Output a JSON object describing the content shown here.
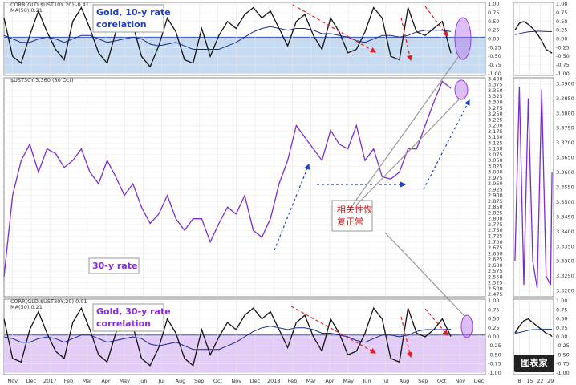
{
  "chart_data": [
    {
      "type": "line",
      "legend": [
        "CORR(GLD,$UST10Y,20) -0.41",
        "MA(50) 0.21"
      ],
      "annotation": [
        "Gold, 10-y rate",
        "corelation"
      ],
      "annotation_color": "#1f3fbf",
      "shade": {
        "from": -1,
        "to": 0.05,
        "color": "#c6dbf1"
      },
      "xlim": [
        0,
        56
      ],
      "ylim": [
        -1.05,
        1.05
      ],
      "yticks": [
        {
          "value": 1,
          "label": "1.00"
        },
        {
          "value": 0.75,
          "label": "0.75"
        },
        {
          "value": 0.5,
          "label": "0.50"
        },
        {
          "value": 0.25,
          "label": "0.25"
        },
        {
          "value": 0,
          "label": "0.00"
        },
        {
          "value": -0.25,
          "label": "-0.25"
        },
        {
          "value": -0.5,
          "label": "-0.50"
        },
        {
          "value": -0.75,
          "label": "-0.75"
        },
        {
          "value": -1,
          "label": "-1.00"
        }
      ],
      "series": [
        {
          "name": "CORR(GLD,$UST10Y,20)",
          "color": "#111111",
          "values": [
            0.6,
            -0.5,
            -0.7,
            0.1,
            0.8,
            0.2,
            -0.3,
            -0.6,
            0.5,
            0.9,
            0.3,
            -0.4,
            -0.7,
            0.2,
            0.7,
            0.4,
            -0.5,
            -0.8,
            -0.2,
            0.6,
            0.2,
            -0.6,
            -0.7,
            0.3,
            -0.5,
            0.1,
            0.5,
            0.3,
            0.7,
            0.9,
            0.6,
            0.8,
            0.3,
            -0.2,
            0.5,
            0.7,
            0.1,
            -0.3,
            0.6,
            0.2,
            -0.4,
            -0.3,
            0.2,
            0.9,
            0.6,
            -0.5,
            -0.6,
            0.9,
            0.2,
            0.1,
            0.3,
            0.5,
            -0.41
          ]
        },
        {
          "name": "MA(50)",
          "color": "#1a2a8a",
          "values": [
            0.1,
            0.0,
            -0.1,
            -0.1,
            0.0,
            0.05,
            0.0,
            -0.1,
            0.0,
            0.1,
            0.1,
            0.0,
            -0.1,
            -0.05,
            0.0,
            0.05,
            0.0,
            -0.15,
            -0.2,
            -0.15,
            -0.1,
            -0.2,
            -0.3,
            -0.3,
            -0.3,
            -0.3,
            -0.2,
            -0.1,
            0.05,
            0.2,
            0.3,
            0.35,
            0.3,
            0.25,
            0.3,
            0.3,
            0.25,
            0.15,
            0.15,
            0.1,
            0.05,
            -0.05,
            -0.1,
            0.0,
            0.1,
            0.1,
            0.05,
            0.1,
            0.2,
            0.25,
            0.25,
            0.25,
            0.21
          ]
        }
      ]
    },
    {
      "type": "line",
      "legend": [
        "$UST30Y 3.360 (30 Oct)"
      ],
      "annotation": [
        "30-y rate"
      ],
      "annotation_color": "#8a2be2",
      "callout": [
        "相关性恢",
        "复正常"
      ],
      "xlim": [
        0,
        56
      ],
      "ylim": [
        2.465,
        3.405
      ],
      "yticks": [
        {
          "value": 3.4,
          "label": "3.400"
        },
        {
          "value": 3.375,
          "label": "3.375"
        },
        {
          "value": 3.35,
          "label": "3.350"
        },
        {
          "value": 3.325,
          "label": "3.325"
        },
        {
          "value": 3.3,
          "label": "3.300"
        },
        {
          "value": 3.275,
          "label": "3.275"
        },
        {
          "value": 3.25,
          "label": "3.250"
        },
        {
          "value": 3.225,
          "label": "3.225"
        },
        {
          "value": 3.2,
          "label": "3.200"
        },
        {
          "value": 3.175,
          "label": "3.175"
        },
        {
          "value": 3.15,
          "label": "3.150"
        },
        {
          "value": 3.125,
          "label": "3.125"
        },
        {
          "value": 3.1,
          "label": "3.100"
        },
        {
          "value": 3.075,
          "label": "3.075"
        },
        {
          "value": 3.05,
          "label": "3.050"
        },
        {
          "value": 3.025,
          "label": "3.025"
        },
        {
          "value": 3,
          "label": "3.000"
        },
        {
          "value": 2.975,
          "label": "2.975"
        },
        {
          "value": 2.95,
          "label": "2.950"
        },
        {
          "value": 2.925,
          "label": "2.925"
        },
        {
          "value": 2.9,
          "label": "2.900"
        },
        {
          "value": 2.875,
          "label": "2.875"
        },
        {
          "value": 2.85,
          "label": "2.850"
        },
        {
          "value": 2.825,
          "label": "2.825"
        },
        {
          "value": 2.8,
          "label": "2.800"
        },
        {
          "value": 2.775,
          "label": "2.775"
        },
        {
          "value": 2.75,
          "label": "2.750"
        },
        {
          "value": 2.725,
          "label": "2.725"
        },
        {
          "value": 2.7,
          "label": "2.700"
        },
        {
          "value": 2.675,
          "label": "2.675"
        },
        {
          "value": 2.65,
          "label": "2.650"
        },
        {
          "value": 2.625,
          "label": "2.625"
        },
        {
          "value": 2.6,
          "label": "2.600"
        },
        {
          "value": 2.575,
          "label": "2.575"
        },
        {
          "value": 2.55,
          "label": "2.550"
        },
        {
          "value": 2.525,
          "label": "2.525"
        },
        {
          "value": 2.5,
          "label": "2.500"
        },
        {
          "value": 2.475,
          "label": "2.475"
        }
      ],
      "series": [
        {
          "name": "$UST30Y",
          "color": "#7b2bd4",
          "values": [
            2.55,
            2.9,
            3.05,
            3.12,
            3.0,
            3.1,
            3.08,
            3.02,
            3.05,
            3.1,
            3.0,
            2.95,
            3.05,
            2.98,
            2.9,
            2.95,
            2.85,
            2.78,
            2.82,
            2.9,
            2.8,
            2.75,
            2.8,
            2.8,
            2.7,
            2.78,
            2.85,
            2.82,
            2.9,
            2.75,
            2.72,
            2.8,
            2.95,
            3.05,
            3.2,
            3.15,
            3.1,
            3.05,
            3.18,
            3.12,
            3.1,
            3.2,
            3.05,
            3.1,
            2.98,
            2.97,
            3.0,
            3.1,
            3.1,
            3.2,
            3.3,
            3.39,
            3.36
          ]
        }
      ]
    },
    {
      "type": "line",
      "legend": [
        "CORR(GLD,$UST30Y,20) 0.01",
        "MA(50) 0.21"
      ],
      "annotation": [
        "Gold, 30-y rate",
        "correlation"
      ],
      "annotation_color": "#8a2be2",
      "shade": {
        "from": -1,
        "to": 0.05,
        "color": "#e3ccf5"
      },
      "xlim": [
        0,
        56
      ],
      "ylim": [
        -1.05,
        1.05
      ],
      "yticks": [
        {
          "value": 1,
          "label": "1.00"
        },
        {
          "value": 0.75,
          "label": "0.75"
        },
        {
          "value": 0.5,
          "label": "0.50"
        },
        {
          "value": 0.25,
          "label": "0.25"
        },
        {
          "value": 0,
          "label": "0.00"
        },
        {
          "value": -0.25,
          "label": "-0.25"
        },
        {
          "value": -0.5,
          "label": "-0.50"
        },
        {
          "value": -0.75,
          "label": "-0.75"
        },
        {
          "value": -1,
          "label": "-1.00"
        }
      ],
      "xticks": [
        {
          "value": 1,
          "label": "Nov"
        },
        {
          "value": 3.17,
          "label": "Dec"
        },
        {
          "value": 5.34,
          "label": "2017"
        },
        {
          "value": 7.51,
          "label": "Feb"
        },
        {
          "value": 9.68,
          "label": "Mar"
        },
        {
          "value": 11.85,
          "label": "Apr"
        },
        {
          "value": 14.02,
          "label": "May"
        },
        {
          "value": 16.19,
          "label": "Jun"
        },
        {
          "value": 18.36,
          "label": "Jul"
        },
        {
          "value": 20.53,
          "label": "Aug"
        },
        {
          "value": 22.7,
          "label": "Sep"
        },
        {
          "value": 24.87,
          "label": "Oct"
        },
        {
          "value": 27.04,
          "label": "Nov"
        },
        {
          "value": 29.21,
          "label": "Dec"
        },
        {
          "value": 31.38,
          "label": "2018"
        },
        {
          "value": 33.55,
          "label": "Feb"
        },
        {
          "value": 35.72,
          "label": "Mar"
        },
        {
          "value": 37.89,
          "label": "Apr"
        },
        {
          "value": 40.06,
          "label": "May"
        },
        {
          "value": 42.23,
          "label": "Jun"
        },
        {
          "value": 44.4,
          "label": "Jul"
        },
        {
          "value": 46.57,
          "label": "Aug"
        },
        {
          "value": 48.74,
          "label": "Sep"
        },
        {
          "value": 50.91,
          "label": "Oct"
        },
        {
          "value": 53.08,
          "label": "Nov"
        },
        {
          "value": 55.25,
          "label": "Dec"
        }
      ],
      "series": [
        {
          "name": "CORR(GLD,$UST30Y,20)",
          "color": "#111111",
          "values": [
            0.5,
            -0.6,
            -0.7,
            0.2,
            0.7,
            0.1,
            -0.4,
            -0.6,
            0.4,
            0.8,
            0.2,
            -0.5,
            -0.7,
            0.1,
            0.6,
            0.3,
            -0.6,
            -0.8,
            -0.3,
            0.5,
            0.1,
            -0.6,
            -0.8,
            0.2,
            -0.5,
            0.0,
            0.4,
            0.2,
            0.6,
            0.8,
            0.5,
            0.7,
            0.2,
            -0.3,
            0.4,
            0.6,
            0.0,
            -0.4,
            0.5,
            0.1,
            -0.5,
            -0.4,
            0.1,
            0.8,
            0.5,
            -0.6,
            -0.7,
            0.8,
            0.1,
            0.0,
            0.2,
            0.5,
            0.01
          ]
        },
        {
          "name": "MA(50)",
          "color": "#1a2a8a",
          "values": [
            0.0,
            -0.05,
            -0.15,
            -0.15,
            -0.05,
            0.0,
            -0.05,
            -0.15,
            -0.05,
            0.05,
            0.05,
            -0.05,
            -0.15,
            -0.1,
            -0.05,
            0.0,
            -0.05,
            -0.2,
            -0.25,
            -0.2,
            -0.15,
            -0.25,
            -0.35,
            -0.35,
            -0.35,
            -0.35,
            -0.25,
            -0.15,
            0.0,
            0.15,
            0.25,
            0.3,
            0.25,
            0.2,
            0.25,
            0.25,
            0.2,
            0.1,
            0.1,
            0.05,
            0.0,
            -0.1,
            -0.15,
            -0.05,
            0.05,
            0.05,
            0.0,
            0.05,
            0.15,
            0.2,
            0.2,
            0.2,
            0.21
          ]
        }
      ]
    },
    {
      "type": "line",
      "xlim": [
        4,
        31
      ],
      "ylim": [
        -1.05,
        1.05
      ],
      "yticks": [
        {
          "value": 1,
          "label": "1.00"
        },
        {
          "value": 0.75,
          "label": "0.75"
        },
        {
          "value": 0.5,
          "label": "0.50"
        },
        {
          "value": 0.25,
          "label": "0.25"
        },
        {
          "value": 0,
          "label": "0.00"
        },
        {
          "value": -0.25,
          "label": "-0.25"
        },
        {
          "value": -0.5,
          "label": "-0.50"
        },
        {
          "value": -0.75,
          "label": "-0.75"
        },
        {
          "value": -1,
          "label": "-1.00"
        }
      ],
      "x": [
        5,
        8,
        11,
        14,
        17,
        20,
        23,
        26,
        29,
        30
      ],
      "series": [
        {
          "color": "#111111",
          "values": [
            0.25,
            0.45,
            0.5,
            0.42,
            0.3,
            0.15,
            -0.05,
            -0.3,
            -0.38,
            -0.41
          ]
        },
        {
          "color": "#1a2a8a",
          "values": [
            0.12,
            0.15,
            0.18,
            0.2,
            0.21,
            0.22,
            0.22,
            0.21,
            0.21,
            0.21
          ]
        }
      ]
    },
    {
      "type": "line",
      "xlim": [
        4,
        31
      ],
      "ylim": [
        3.318,
        3.392
      ],
      "yticks": [
        {
          "value": 3.39,
          "label": "3.3900"
        },
        {
          "value": 3.385,
          "label": "3.3850"
        },
        {
          "value": 3.38,
          "label": "3.3800"
        },
        {
          "value": 3.375,
          "label": "3.3750"
        },
        {
          "value": 3.37,
          "label": "3.3700"
        },
        {
          "value": 3.365,
          "label": "3.3650"
        },
        {
          "value": 3.36,
          "label": "3.3600"
        },
        {
          "value": 3.355,
          "label": "3.3550"
        },
        {
          "value": 3.35,
          "label": "3.3500"
        },
        {
          "value": 3.345,
          "label": "3.3450"
        },
        {
          "value": 3.34,
          "label": "3.3400"
        },
        {
          "value": 3.335,
          "label": "3.3350"
        },
        {
          "value": 3.33,
          "label": "3.3300"
        },
        {
          "value": 3.325,
          "label": "3.3250"
        },
        {
          "value": 3.32,
          "label": "3.3200"
        }
      ],
      "x": [
        5,
        8,
        11,
        14,
        17,
        20,
        23,
        26,
        29,
        30
      ],
      "series": [
        {
          "color": "#7b2bd4",
          "values": [
            3.33,
            3.389,
            3.322,
            3.385,
            3.33,
            3.321,
            3.388,
            3.325,
            3.322,
            3.36
          ]
        }
      ]
    },
    {
      "type": "line",
      "xlim": [
        4,
        31
      ],
      "ylim": [
        -1.05,
        1.05
      ],
      "yticks": [
        {
          "value": 1,
          "label": "1.00"
        },
        {
          "value": 0.75,
          "label": "0.75"
        },
        {
          "value": 0.5,
          "label": "0.50"
        },
        {
          "value": 0.25,
          "label": "0.25"
        },
        {
          "value": 0,
          "label": "0.00"
        },
        {
          "value": -0.25,
          "label": "-0.25"
        },
        {
          "value": -0.5,
          "label": "-0.50"
        },
        {
          "value": -0.75,
          "label": "-0.75"
        },
        {
          "value": -1,
          "label": "-1.00"
        }
      ],
      "xticks": [
        8,
        15,
        22,
        29
      ],
      "x": [
        5,
        8,
        11,
        14,
        17,
        20,
        23,
        26,
        29,
        30
      ],
      "series": [
        {
          "color": "#111111",
          "values": [
            0.1,
            0.3,
            0.45,
            0.5,
            0.4,
            0.3,
            0.2,
            0.1,
            0.05,
            0.01
          ]
        },
        {
          "color": "#1a2a8a",
          "values": [
            0.1,
            0.12,
            0.15,
            0.18,
            0.2,
            0.2,
            0.21,
            0.21,
            0.21,
            0.21
          ]
        }
      ]
    }
  ],
  "logo": "图表家"
}
